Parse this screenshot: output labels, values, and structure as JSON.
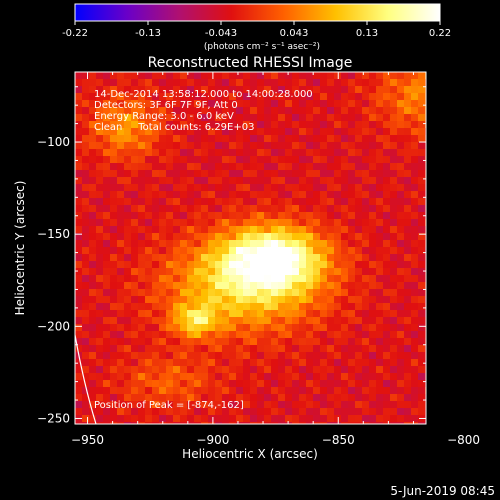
{
  "colorbar": {
    "ticks": [
      "-0.22",
      "-0.13",
      "-0.043",
      "0.043",
      "0.13",
      "0.22"
    ],
    "unit_label": "(photons cm⁻² s⁻¹ asec⁻²)",
    "stops": [
      "#0000ff",
      "#6a00c8",
      "#b01070",
      "#e01010",
      "#ff6000",
      "#ffc000",
      "#ffff80",
      "#ffffff"
    ]
  },
  "chart_data": {
    "type": "heatmap",
    "title": "Reconstructed RHESSI Image",
    "xlabel": "Heliocentric X (arcsec)",
    "ylabel": "Heliocentric Y (arcsec)",
    "xlim": [
      -955,
      -815
    ],
    "ylim": [
      -253,
      -62
    ],
    "xticks": [
      -950,
      -900,
      -850,
      -800
    ],
    "yticks": [
      -250,
      -200,
      -150,
      -100
    ],
    "value_range": [
      -0.22,
      0.22
    ],
    "peak": [
      -874,
      -162
    ],
    "sources": [
      {
        "x": -876,
        "y": -163,
        "amp": 0.22,
        "sx": 14,
        "sy": 12
      },
      {
        "x": -888,
        "y": -178,
        "amp": 0.15,
        "sx": 22,
        "sy": 18
      },
      {
        "x": -907,
        "y": -197,
        "amp": 0.13,
        "sx": 6,
        "sy": 6
      },
      {
        "x": -935,
        "y": -92,
        "amp": 0.1,
        "sx": 10,
        "sy": 12
      },
      {
        "x": -815,
        "y": -75,
        "amp": 0.09,
        "sx": 14,
        "sy": 14
      },
      {
        "x": -918,
        "y": -230,
        "amp": 0.06,
        "sx": 14,
        "sy": 10
      }
    ],
    "annotations": [
      "14-Dec-2014 13:58:12.000 to 14:00:28.000",
      "Detectors: 3F 6F 7F 9F, Att 0",
      "Energy Range: 3.0 - 6.0 keV",
      "Clean     Total counts: 6.29E+03"
    ],
    "peak_label": "Position of Peak = [-874,-162]"
  },
  "footer": {
    "date": "5-Jun-2019 08:45"
  }
}
